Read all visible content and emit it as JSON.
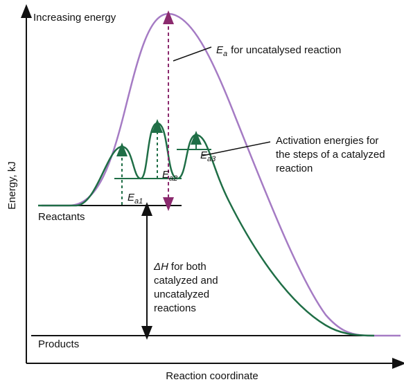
{
  "axis": {
    "y_top_label": "Increasing energy",
    "y_label": "Energy, kJ",
    "x_label": "Reaction coordinate"
  },
  "uncatalysed": {
    "symbol": "E",
    "subscript": "a",
    "text": "for uncatalysed reaction"
  },
  "catalyzed_steps": {
    "lines": [
      "Activation energies for",
      "the steps of a catalyzed",
      "reaction"
    ]
  },
  "steps": [
    {
      "symbol": "E",
      "subscript": "a1"
    },
    {
      "symbol": "E",
      "subscript": "a2"
    },
    {
      "symbol": "E",
      "subscript": "a3"
    }
  ],
  "levels": {
    "reactants": "Reactants",
    "products": "Products"
  },
  "delta_h": {
    "symbol": "ΔH",
    "lines": [
      "for both",
      "catalyzed and",
      "uncatalyzed",
      "reactions"
    ]
  }
}
